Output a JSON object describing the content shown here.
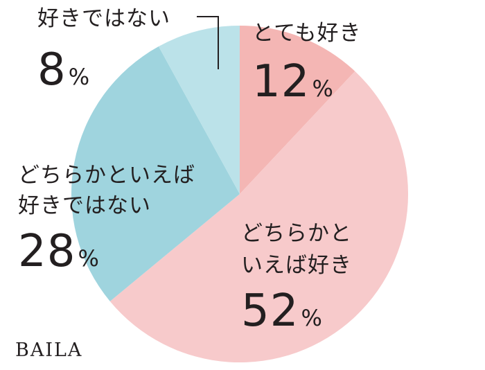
{
  "chart_data": {
    "type": "pie",
    "title": "",
    "start": "top",
    "direction": "clockwise",
    "slices": [
      {
        "label": "とても好き",
        "value": 12,
        "color": "#f4b6b4"
      },
      {
        "label": "どちらかといえば好き",
        "value": 52,
        "color": "#f7cacb"
      },
      {
        "label": "どちらかといえば好きではない",
        "value": 28,
        "color": "#9fd4de"
      },
      {
        "label": "好きではない",
        "value": 8,
        "color": "#bbe2e9"
      }
    ],
    "label_lines": {
      "slice0": [
        "とても好き"
      ],
      "slice1": [
        "どちらかと",
        "いえば好き"
      ],
      "slice2": [
        "どちらかといえば",
        "好きではない"
      ],
      "slice3": [
        "好きではない"
      ]
    },
    "percent_sign": "%"
  },
  "brand": "BAILA"
}
